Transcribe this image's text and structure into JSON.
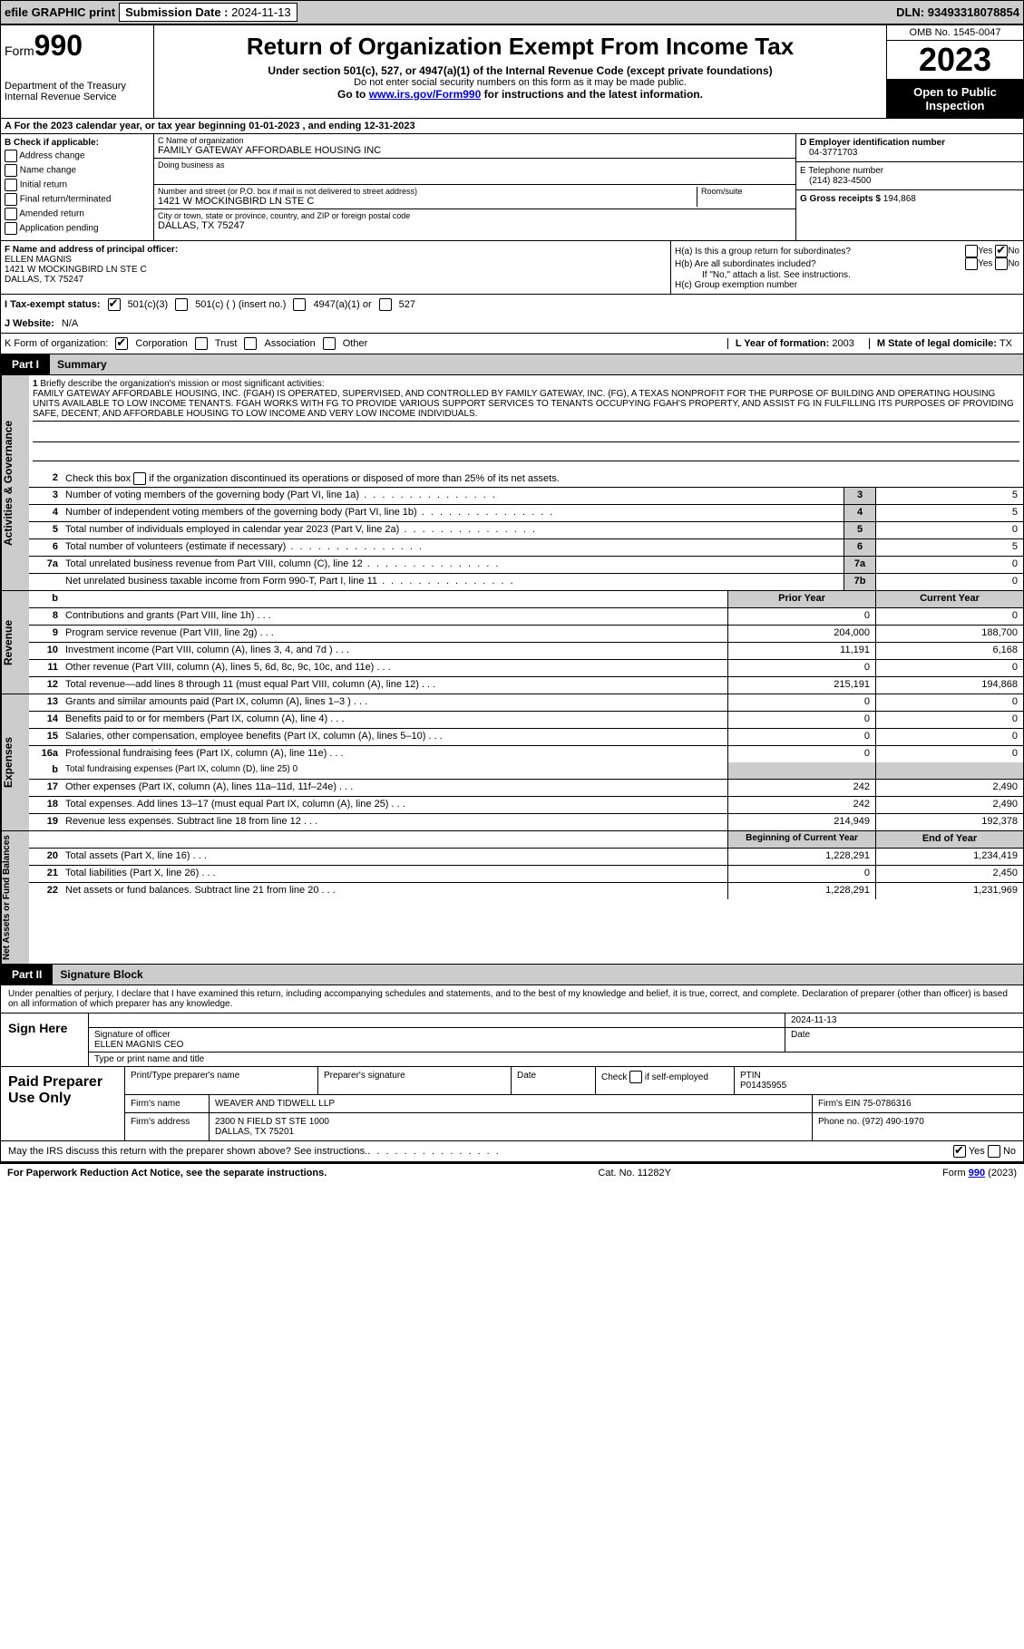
{
  "topbar": {
    "efile": "efile GRAPHIC print",
    "submission_label": "Submission Date : ",
    "submission_date": "2024-11-13",
    "dln_label": "DLN: ",
    "dln": "93493318078854"
  },
  "header": {
    "form_prefix": "Form",
    "form_number": "990",
    "dept": "Department of the Treasury\nInternal Revenue Service",
    "title": "Return of Organization Exempt From Income Tax",
    "subtitle": "Under section 501(c), 527, or 4947(a)(1) of the Internal Revenue Code (except private foundations)",
    "ssn_note": "Do not enter social security numbers on this form as it may be made public.",
    "goto_prefix": "Go to ",
    "goto_link": "www.irs.gov/Form990",
    "goto_suffix": " for instructions and the latest information.",
    "omb": "OMB No. 1545-0047",
    "year": "2023",
    "open": "Open to Public Inspection"
  },
  "row_a": {
    "prefix": "A  For the 2023 calendar year, or tax year beginning ",
    "begin": "01-01-2023",
    "mid": "   , and ending ",
    "end": "12-31-2023"
  },
  "section_b": {
    "label": "B Check if applicable:",
    "opts": [
      "Address change",
      "Name change",
      "Initial return",
      "Final return/terminated",
      "Amended return",
      "Application pending"
    ]
  },
  "section_c": {
    "name_label": "C Name of organization",
    "name": "FAMILY GATEWAY AFFORDABLE HOUSING INC",
    "dba_label": "Doing business as",
    "street_label": "Number and street (or P.O. box if mail is not delivered to street address)",
    "street": "1421 W MOCKINGBIRD LN STE C",
    "room_label": "Room/suite",
    "city_label": "City or town, state or province, country, and ZIP or foreign postal code",
    "city": "DALLAS, TX  75247"
  },
  "section_d": {
    "ein_label": "D Employer identification number",
    "ein": "04-3771703",
    "phone_label": "E Telephone number",
    "phone": "(214) 823-4500",
    "gross_label": "G Gross receipts $ ",
    "gross": "194,868"
  },
  "section_f": {
    "label": "F  Name and address of principal officer:",
    "name": "ELLEN MAGNIS",
    "street": "1421 W MOCKINGBIRD LN STE C",
    "city": "DALLAS, TX  75247"
  },
  "section_h": {
    "ha": "H(a)  Is this a group return for subordinates?",
    "hb": "H(b)  Are all subordinates included?",
    "hb_note": "If \"No,\" attach a list. See instructions.",
    "hc": "H(c)  Group exemption number",
    "yes": "Yes",
    "no": "No"
  },
  "row_i": {
    "label": "I  Tax-exempt status:",
    "opt1": "501(c)(3)",
    "opt2": "501(c) (  ) (insert no.)",
    "opt3": "4947(a)(1) or",
    "opt4": "527"
  },
  "row_j": {
    "label": "J  Website:",
    "val": "N/A"
  },
  "row_k": {
    "label": "K Form of organization:",
    "opts": [
      "Corporation",
      "Trust",
      "Association",
      "Other"
    ],
    "l_label": "L Year of formation: ",
    "l_val": "2003",
    "m_label": "M State of legal domicile: ",
    "m_val": "TX"
  },
  "part1": {
    "label": "Part I",
    "title": "Summary"
  },
  "summary": {
    "tab1": "Activities & Governance",
    "tab2": "Revenue",
    "tab3": "Expenses",
    "tab4": "Net Assets or Fund Balances",
    "line1_label": "Briefly describe the organization's mission or most significant activities:",
    "mission": "FAMILY GATEWAY AFFORDABLE HOUSING, INC. (FGAH) IS OPERATED, SUPERVISED, AND CONTROLLED BY FAMILY GATEWAY, INC. (FG), A TEXAS NONPROFIT FOR THE PURPOSE OF BUILDING AND OPERATING HOUSING UNITS AVAILABLE TO LOW INCOME TENANTS. FGAH WORKS WITH FG TO PROVIDE VARIOUS SUPPORT SERVICES TO TENANTS OCCUPYING FGAH'S PROPERTY, AND ASSIST FG IN FULFILLING ITS PURPOSES OF PROVIDING SAFE, DECENT, AND AFFORDABLE HOUSING TO LOW INCOME AND VERY LOW INCOME INDIVIDUALS.",
    "line2": "Check this box         if the organization discontinued its operations or disposed of more than 25% of its net assets.",
    "rows_gov": [
      {
        "n": "3",
        "d": "Number of voting members of the governing body (Part VI, line 1a)",
        "box": "3",
        "v": "5"
      },
      {
        "n": "4",
        "d": "Number of independent voting members of the governing body (Part VI, line 1b)",
        "box": "4",
        "v": "5"
      },
      {
        "n": "5",
        "d": "Total number of individuals employed in calendar year 2023 (Part V, line 2a)",
        "box": "5",
        "v": "0"
      },
      {
        "n": "6",
        "d": "Total number of volunteers (estimate if necessary)",
        "box": "6",
        "v": "5"
      },
      {
        "n": "7a",
        "d": "Total unrelated business revenue from Part VIII, column (C), line 12",
        "box": "7a",
        "v": "0"
      },
      {
        "n": "",
        "d": "Net unrelated business taxable income from Form 990-T, Part I, line 11",
        "box": "7b",
        "v": "0"
      }
    ],
    "col_prior": "Prior Year",
    "col_current": "Current Year",
    "rows_rev": [
      {
        "n": "8",
        "d": "Contributions and grants (Part VIII, line 1h)",
        "p": "0",
        "c": "0"
      },
      {
        "n": "9",
        "d": "Program service revenue (Part VIII, line 2g)",
        "p": "204,000",
        "c": "188,700"
      },
      {
        "n": "10",
        "d": "Investment income (Part VIII, column (A), lines 3, 4, and 7d )",
        "p": "11,191",
        "c": "6,168"
      },
      {
        "n": "11",
        "d": "Other revenue (Part VIII, column (A), lines 5, 6d, 8c, 9c, 10c, and 11e)",
        "p": "0",
        "c": "0"
      },
      {
        "n": "12",
        "d": "Total revenue—add lines 8 through 11 (must equal Part VIII, column (A), line 12)",
        "p": "215,191",
        "c": "194,868"
      }
    ],
    "rows_exp": [
      {
        "n": "13",
        "d": "Grants and similar amounts paid (Part IX, column (A), lines 1–3 )",
        "p": "0",
        "c": "0"
      },
      {
        "n": "14",
        "d": "Benefits paid to or for members (Part IX, column (A), line 4)",
        "p": "0",
        "c": "0"
      },
      {
        "n": "15",
        "d": "Salaries, other compensation, employee benefits (Part IX, column (A), lines 5–10)",
        "p": "0",
        "c": "0"
      },
      {
        "n": "16a",
        "d": "Professional fundraising fees (Part IX, column (A), line 11e)",
        "p": "0",
        "c": "0"
      }
    ],
    "line16b": "Total fundraising expenses (Part IX, column (D), line 25) 0",
    "rows_exp2": [
      {
        "n": "17",
        "d": "Other expenses (Part IX, column (A), lines 11a–11d, 11f–24e)",
        "p": "242",
        "c": "2,490"
      },
      {
        "n": "18",
        "d": "Total expenses. Add lines 13–17 (must equal Part IX, column (A), line 25)",
        "p": "242",
        "c": "2,490"
      },
      {
        "n": "19",
        "d": "Revenue less expenses. Subtract line 18 from line 12",
        "p": "214,949",
        "c": "192,378"
      }
    ],
    "col_begin": "Beginning of Current Year",
    "col_end": "End of Year",
    "rows_net": [
      {
        "n": "20",
        "d": "Total assets (Part X, line 16)",
        "p": "1,228,291",
        "c": "1,234,419"
      },
      {
        "n": "21",
        "d": "Total liabilities (Part X, line 26)",
        "p": "0",
        "c": "2,450"
      },
      {
        "n": "22",
        "d": "Net assets or fund balances. Subtract line 21 from line 20",
        "p": "1,228,291",
        "c": "1,231,969"
      }
    ]
  },
  "part2": {
    "label": "Part II",
    "title": "Signature Block"
  },
  "sig": {
    "declaration": "Under penalties of perjury, I declare that I have examined this return, including accompanying schedules and statements, and to the best of my knowledge and belief, it is true, correct, and complete. Declaration of preparer (other than officer) is based on all information of which preparer has any knowledge.",
    "sign_here": "Sign Here",
    "date": "2024-11-13",
    "sig_label": "Signature of officer",
    "officer": "ELLEN MAGNIS  CEO",
    "type_label": "Type or print name and title",
    "date_label": "Date"
  },
  "prep": {
    "title": "Paid Preparer Use Only",
    "name_label": "Print/Type preparer's name",
    "sig_label": "Preparer's signature",
    "date_label": "Date",
    "check_label": "Check         if self-employed",
    "ptin_label": "PTIN",
    "ptin": "P01435955",
    "firm_name_label": "Firm's name",
    "firm_name": "WEAVER AND TIDWELL LLP",
    "firm_ein_label": "Firm's EIN",
    "firm_ein": "75-0786316",
    "firm_addr_label": "Firm's address",
    "firm_addr": "2300 N FIELD ST STE 1000\nDALLAS, TX  75201",
    "phone_label": "Phone no. ",
    "phone": "(972) 490-1970"
  },
  "footer": {
    "discuss": "May the IRS discuss this return with the preparer shown above? See instructions.",
    "yes": "Yes",
    "no": "No",
    "paperwork": "For Paperwork Reduction Act Notice, see the separate instructions.",
    "cat": "Cat. No. 11282Y",
    "form": "Form 990 (2023)"
  }
}
